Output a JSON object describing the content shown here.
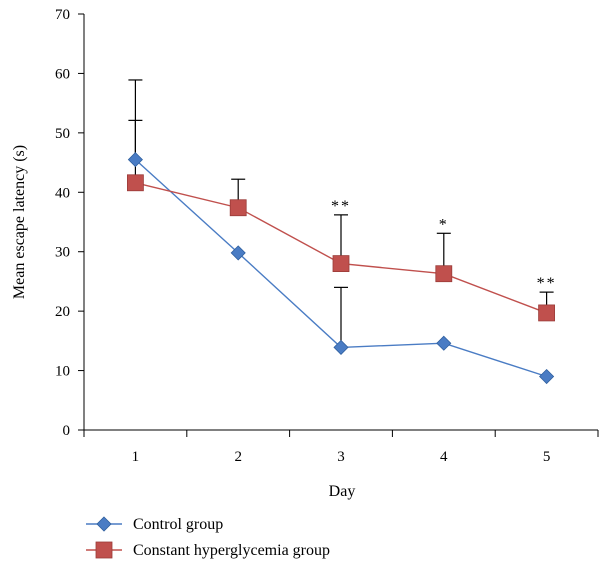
{
  "chart_data": {
    "type": "line",
    "xlabel": "Day",
    "ylabel": "Mean escape latency (s)",
    "ylim": [
      0,
      70
    ],
    "y_ticks": [
      0,
      10,
      20,
      30,
      40,
      50,
      60,
      70
    ],
    "categories": [
      1,
      2,
      3,
      4,
      5
    ],
    "grid": false,
    "legend_position": "bottom-left",
    "series": [
      {
        "name": "Control group",
        "marker": "diamond",
        "color": "#4a7cc4",
        "values": [
          45.5,
          29.8,
          13.9,
          14.6,
          9.0
        ],
        "error_upper": [
          52.1,
          null,
          24.0,
          null,
          null
        ]
      },
      {
        "name": "Constant hyperglycemia group",
        "marker": "square",
        "color": "#c0504d",
        "values": [
          41.6,
          37.4,
          28.0,
          26.3,
          19.7
        ],
        "error_upper": [
          58.9,
          42.2,
          36.2,
          33.1,
          23.2
        ]
      }
    ],
    "annotations": [
      {
        "x": 3,
        "text": "**"
      },
      {
        "x": 4,
        "text": "*"
      },
      {
        "x": 5,
        "text": "**"
      }
    ]
  }
}
